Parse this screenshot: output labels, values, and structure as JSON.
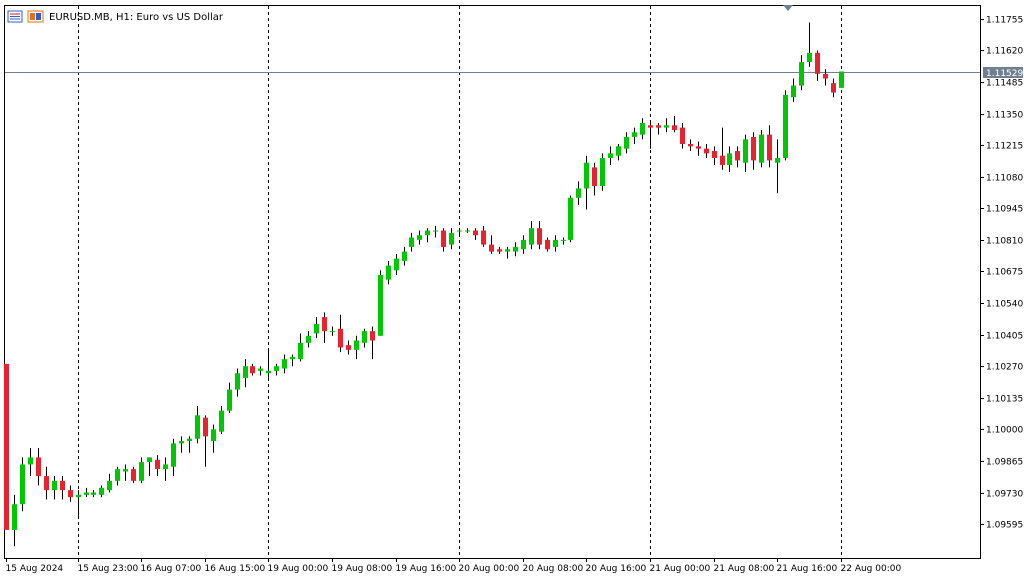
{
  "header": {
    "symbol_label": "EURUSD.MB, H1:  Euro vs US Dollar"
  },
  "colors": {
    "bull": "#00c800",
    "bear": "#e8232f",
    "wick": "#000000",
    "grid": "#000000",
    "bid_line": "#708090",
    "price_tag": "#708090",
    "frame": "#000000"
  },
  "chart_data": {
    "type": "candlestick",
    "symbol": "EURUSD.MB",
    "timeframe": "H1",
    "description": "Euro vs US Dollar",
    "ylim": [
      1.0945,
      1.1181
    ],
    "y_ticks": [
      "1.11755",
      "1.11620",
      "1.11485",
      "1.11350",
      "1.11215",
      "1.11080",
      "1.10945",
      "1.10810",
      "1.10675",
      "1.10540",
      "1.10405",
      "1.10270",
      "1.10135",
      "1.10000",
      "1.09865",
      "1.09730",
      "1.09595"
    ],
    "x_ticks": [
      {
        "index": 0,
        "label": "15 Aug 2024"
      },
      {
        "index": 9,
        "label": "15 Aug 23:00"
      },
      {
        "index": 17,
        "label": "16 Aug 07:00"
      },
      {
        "index": 25,
        "label": "16 Aug 15:00"
      },
      {
        "index": 33,
        "label": "19 Aug 00:00"
      },
      {
        "index": 41,
        "label": "19 Aug 08:00"
      },
      {
        "index": 49,
        "label": "19 Aug 16:00"
      },
      {
        "index": 57,
        "label": "20 Aug 00:00"
      },
      {
        "index": 65,
        "label": "20 Aug 08:00"
      },
      {
        "index": 73,
        "label": "20 Aug 16:00"
      },
      {
        "index": 81,
        "label": "21 Aug 00:00"
      },
      {
        "index": 89,
        "label": "21 Aug 08:00"
      },
      {
        "index": 97,
        "label": "21 Aug 16:00"
      },
      {
        "index": 105,
        "label": "22 Aug 00:00"
      }
    ],
    "day_separators": [
      9,
      33,
      57,
      81,
      105
    ],
    "current_price": "1.11529",
    "candles": [
      {
        "o": 1.1028,
        "h": 1.1028,
        "l": 1.0957,
        "c": 1.0957
      },
      {
        "o": 1.0957,
        "h": 1.0972,
        "l": 1.095,
        "c": 1.0968
      },
      {
        "o": 1.0968,
        "h": 1.0988,
        "l": 1.0965,
        "c": 1.0985
      },
      {
        "o": 1.0985,
        "h": 1.0992,
        "l": 1.098,
        "c": 1.0988
      },
      {
        "o": 1.0988,
        "h": 1.0992,
        "l": 1.0976,
        "c": 1.098
      },
      {
        "o": 1.098,
        "h": 1.0984,
        "l": 1.097,
        "c": 1.0974
      },
      {
        "o": 1.0974,
        "h": 1.098,
        "l": 1.097,
        "c": 1.0978
      },
      {
        "o": 1.0978,
        "h": 1.098,
        "l": 1.097,
        "c": 1.0974
      },
      {
        "o": 1.0974,
        "h": 1.0976,
        "l": 1.0969,
        "c": 1.0971
      },
      {
        "o": 1.0971,
        "h": 1.0974,
        "l": 1.0963,
        "c": 1.0972
      },
      {
        "o": 1.0972,
        "h": 1.0975,
        "l": 1.0971,
        "c": 1.0973
      },
      {
        "o": 1.0972,
        "h": 1.0974,
        "l": 1.0971,
        "c": 1.0973
      },
      {
        "o": 1.0972,
        "h": 1.0976,
        "l": 1.0971,
        "c": 1.0975
      },
      {
        "o": 1.0974,
        "h": 1.0981,
        "l": 1.0973,
        "c": 1.0978
      },
      {
        "o": 1.0978,
        "h": 1.0984,
        "l": 1.0976,
        "c": 1.0983
      },
      {
        "o": 1.0982,
        "h": 1.0985,
        "l": 1.0978,
        "c": 1.0983
      },
      {
        "o": 1.0983,
        "h": 1.0984,
        "l": 1.0977,
        "c": 1.0978
      },
      {
        "o": 1.0978,
        "h": 1.0988,
        "l": 1.0977,
        "c": 1.0986
      },
      {
        "o": 1.0986,
        "h": 1.0988,
        "l": 1.098,
        "c": 1.0988
      },
      {
        "o": 1.0987,
        "h": 1.0989,
        "l": 1.098,
        "c": 1.0983
      },
      {
        "o": 1.0983,
        "h": 1.0988,
        "l": 1.0978,
        "c": 1.0985
      },
      {
        "o": 1.0984,
        "h": 1.0996,
        "l": 1.098,
        "c": 1.0994
      },
      {
        "o": 1.0994,
        "h": 1.0997,
        "l": 1.099,
        "c": 1.0995
      },
      {
        "o": 1.0995,
        "h": 1.0997,
        "l": 1.099,
        "c": 1.0996
      },
      {
        "o": 1.0996,
        "h": 1.101,
        "l": 1.0994,
        "c": 1.1006
      },
      {
        "o": 1.1005,
        "h": 1.1006,
        "l": 1.0984,
        "c": 1.0997
      },
      {
        "o": 1.0995,
        "h": 1.1002,
        "l": 1.099,
        "c": 1.1
      },
      {
        "o": 1.0999,
        "h": 1.101,
        "l": 1.0998,
        "c": 1.1008
      },
      {
        "o": 1.1008,
        "h": 1.102,
        "l": 1.1007,
        "c": 1.1017
      },
      {
        "o": 1.1017,
        "h": 1.1026,
        "l": 1.1014,
        "c": 1.1024
      },
      {
        "o": 1.1022,
        "h": 1.103,
        "l": 1.1018,
        "c": 1.1027
      },
      {
        "o": 1.1027,
        "h": 1.1028,
        "l": 1.1023,
        "c": 1.1024
      },
      {
        "o": 1.1025,
        "h": 1.1027,
        "l": 1.1023,
        "c": 1.1026
      },
      {
        "o": 1.1024,
        "h": 1.1034,
        "l": 1.1022,
        "c": 1.1025
      },
      {
        "o": 1.1025,
        "h": 1.1028,
        "l": 1.1023,
        "c": 1.1027
      },
      {
        "o": 1.1026,
        "h": 1.1032,
        "l": 1.1024,
        "c": 1.103
      },
      {
        "o": 1.103,
        "h": 1.1032,
        "l": 1.1027,
        "c": 1.1031
      },
      {
        "o": 1.103,
        "h": 1.1041,
        "l": 1.1029,
        "c": 1.1037
      },
      {
        "o": 1.1037,
        "h": 1.1042,
        "l": 1.1035,
        "c": 1.104
      },
      {
        "o": 1.1041,
        "h": 1.1048,
        "l": 1.1039,
        "c": 1.1045
      },
      {
        "o": 1.1048,
        "h": 1.105,
        "l": 1.1037,
        "c": 1.1042
      },
      {
        "o": 1.1042,
        "h": 1.1044,
        "l": 1.104,
        "c": 1.1042
      },
      {
        "o": 1.1043,
        "h": 1.1049,
        "l": 1.1033,
        "c": 1.1035
      },
      {
        "o": 1.1036,
        "h": 1.1038,
        "l": 1.1032,
        "c": 1.1034
      },
      {
        "o": 1.1034,
        "h": 1.104,
        "l": 1.103,
        "c": 1.1038
      },
      {
        "o": 1.1037,
        "h": 1.1043,
        "l": 1.1035,
        "c": 1.1042
      },
      {
        "o": 1.1042,
        "h": 1.1044,
        "l": 1.103,
        "c": 1.1038
      },
      {
        "o": 1.104,
        "h": 1.1068,
        "l": 1.104,
        "c": 1.1066
      },
      {
        "o": 1.1064,
        "h": 1.1072,
        "l": 1.1062,
        "c": 1.107
      },
      {
        "o": 1.1068,
        "h": 1.1075,
        "l": 1.1066,
        "c": 1.1073
      },
      {
        "o": 1.1072,
        "h": 1.1078,
        "l": 1.107,
        "c": 1.1076
      },
      {
        "o": 1.1078,
        "h": 1.1084,
        "l": 1.1076,
        "c": 1.1082
      },
      {
        "o": 1.1081,
        "h": 1.1085,
        "l": 1.1079,
        "c": 1.1083
      },
      {
        "o": 1.1083,
        "h": 1.1086,
        "l": 1.108,
        "c": 1.1085
      },
      {
        "o": 1.1085,
        "h": 1.1087,
        "l": 1.1082,
        "c": 1.1085
      },
      {
        "o": 1.1085,
        "h": 1.1086,
        "l": 1.1076,
        "c": 1.1078
      },
      {
        "o": 1.1079,
        "h": 1.1086,
        "l": 1.1077,
        "c": 1.1084
      },
      {
        "o": 1.1085,
        "h": 1.1086,
        "l": 1.1083,
        "c": 1.1085
      },
      {
        "o": 1.1085,
        "h": 1.1086,
        "l": 1.1084,
        "c": 1.1085
      },
      {
        "o": 1.1085,
        "h": 1.1086,
        "l": 1.1081,
        "c": 1.1083
      },
      {
        "o": 1.1085,
        "h": 1.1087,
        "l": 1.1078,
        "c": 1.1079
      },
      {
        "o": 1.1079,
        "h": 1.1083,
        "l": 1.1075,
        "c": 1.1076
      },
      {
        "o": 1.1077,
        "h": 1.1078,
        "l": 1.1075,
        "c": 1.1076
      },
      {
        "o": 1.1076,
        "h": 1.1078,
        "l": 1.1073,
        "c": 1.1077
      },
      {
        "o": 1.1076,
        "h": 1.108,
        "l": 1.1074,
        "c": 1.1078
      },
      {
        "o": 1.1077,
        "h": 1.1083,
        "l": 1.1075,
        "c": 1.1081
      },
      {
        "o": 1.1079,
        "h": 1.1089,
        "l": 1.1077,
        "c": 1.1086
      },
      {
        "o": 1.1086,
        "h": 1.1089,
        "l": 1.1077,
        "c": 1.1079
      },
      {
        "o": 1.1081,
        "h": 1.1082,
        "l": 1.1076,
        "c": 1.1077
      },
      {
        "o": 1.1078,
        "h": 1.1083,
        "l": 1.1076,
        "c": 1.1081
      },
      {
        "o": 1.1081,
        "h": 1.1082,
        "l": 1.1079,
        "c": 1.1081
      },
      {
        "o": 1.1081,
        "h": 1.11,
        "l": 1.108,
        "c": 1.1099
      },
      {
        "o": 1.1099,
        "h": 1.1106,
        "l": 1.1096,
        "c": 1.1103
      },
      {
        "o": 1.1103,
        "h": 1.1117,
        "l": 1.1094,
        "c": 1.1114
      },
      {
        "o": 1.1112,
        "h": 1.1114,
        "l": 1.11,
        "c": 1.1104
      },
      {
        "o": 1.1104,
        "h": 1.1118,
        "l": 1.1102,
        "c": 1.1116
      },
      {
        "o": 1.1116,
        "h": 1.1121,
        "l": 1.1113,
        "c": 1.1118
      },
      {
        "o": 1.1117,
        "h": 1.1122,
        "l": 1.1115,
        "c": 1.1121
      },
      {
        "o": 1.112,
        "h": 1.1127,
        "l": 1.1118,
        "c": 1.1125
      },
      {
        "o": 1.1125,
        "h": 1.1129,
        "l": 1.1122,
        "c": 1.1127
      },
      {
        "o": 1.1126,
        "h": 1.1133,
        "l": 1.1124,
        "c": 1.1131
      },
      {
        "o": 1.113,
        "h": 1.1131,
        "l": 1.112,
        "c": 1.1129
      },
      {
        "o": 1.113,
        "h": 1.1131,
        "l": 1.1126,
        "c": 1.1129
      },
      {
        "o": 1.1129,
        "h": 1.1133,
        "l": 1.1127,
        "c": 1.113
      },
      {
        "o": 1.113,
        "h": 1.1134,
        "l": 1.1127,
        "c": 1.1128
      },
      {
        "o": 1.1129,
        "h": 1.1131,
        "l": 1.112,
        "c": 1.1122
      },
      {
        "o": 1.1122,
        "h": 1.1124,
        "l": 1.1119,
        "c": 1.1121
      },
      {
        "o": 1.1121,
        "h": 1.1123,
        "l": 1.1117,
        "c": 1.112
      },
      {
        "o": 1.112,
        "h": 1.1122,
        "l": 1.1116,
        "c": 1.1118
      },
      {
        "o": 1.1119,
        "h": 1.1121,
        "l": 1.1113,
        "c": 1.1116
      },
      {
        "o": 1.1117,
        "h": 1.1129,
        "l": 1.1111,
        "c": 1.1113
      },
      {
        "o": 1.1113,
        "h": 1.1121,
        "l": 1.111,
        "c": 1.1118
      },
      {
        "o": 1.1119,
        "h": 1.1121,
        "l": 1.1112,
        "c": 1.1115
      },
      {
        "o": 1.1114,
        "h": 1.1126,
        "l": 1.111,
        "c": 1.1124
      },
      {
        "o": 1.1125,
        "h": 1.1127,
        "l": 1.1111,
        "c": 1.1115
      },
      {
        "o": 1.1114,
        "h": 1.1128,
        "l": 1.1112,
        "c": 1.1126
      },
      {
        "o": 1.1126,
        "h": 1.113,
        "l": 1.1112,
        "c": 1.1115
      },
      {
        "o": 1.1114,
        "h": 1.1124,
        "l": 1.1101,
        "c": 1.1116
      },
      {
        "o": 1.1116,
        "h": 1.1145,
        "l": 1.1115,
        "c": 1.1143
      },
      {
        "o": 1.1142,
        "h": 1.115,
        "l": 1.114,
        "c": 1.1147
      },
      {
        "o": 1.1147,
        "h": 1.116,
        "l": 1.1145,
        "c": 1.1157
      },
      {
        "o": 1.1157,
        "h": 1.1174,
        "l": 1.1155,
        "c": 1.1161
      },
      {
        "o": 1.1161,
        "h": 1.1162,
        "l": 1.1149,
        "c": 1.1152
      },
      {
        "o": 1.1152,
        "h": 1.1154,
        "l": 1.1147,
        "c": 1.115
      },
      {
        "o": 1.1148,
        "h": 1.115,
        "l": 1.1142,
        "c": 1.1144
      },
      {
        "o": 1.1146,
        "h": 1.1153,
        "l": 1.1146,
        "c": 1.1153
      }
    ]
  }
}
